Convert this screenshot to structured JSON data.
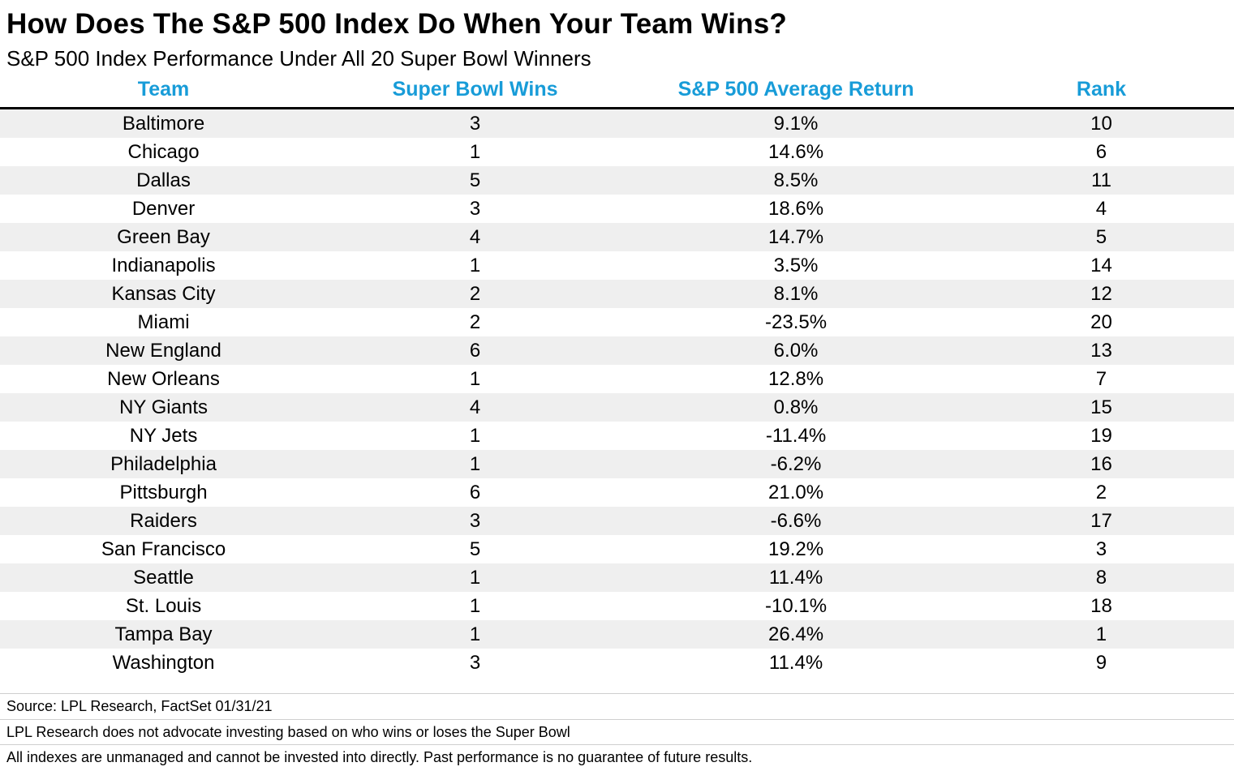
{
  "header": {
    "title": "How Does The S&P 500 Index Do When Your Team Wins?",
    "subtitle": "S&P 500 Index Performance Under All 20 Super Bowl Winners"
  },
  "colors": {
    "accent_header": "#189CD8",
    "row_stripe": "#EFEFEF",
    "header_divider": "#000000"
  },
  "chart_data": {
    "type": "table",
    "title": "How Does The S&P 500 Index Do When Your Team Wins?",
    "subtitle": "S&P 500 Index Performance Under All 20 Super Bowl Winners",
    "columns": [
      "Team",
      "Super Bowl Wins",
      "S&P 500 Average Return",
      "Rank"
    ],
    "rows": [
      {
        "team": "Baltimore",
        "wins": "3",
        "return": "9.1%",
        "rank": "10"
      },
      {
        "team": "Chicago",
        "wins": "1",
        "return": "14.6%",
        "rank": "6"
      },
      {
        "team": "Dallas",
        "wins": "5",
        "return": "8.5%",
        "rank": "11"
      },
      {
        "team": "Denver",
        "wins": "3",
        "return": "18.6%",
        "rank": "4"
      },
      {
        "team": "Green Bay",
        "wins": "4",
        "return": "14.7%",
        "rank": "5"
      },
      {
        "team": "Indianapolis",
        "wins": "1",
        "return": "3.5%",
        "rank": "14"
      },
      {
        "team": "Kansas City",
        "wins": "2",
        "return": "8.1%",
        "rank": "12"
      },
      {
        "team": "Miami",
        "wins": "2",
        "return": "-23.5%",
        "rank": "20"
      },
      {
        "team": "New England",
        "wins": "6",
        "return": "6.0%",
        "rank": "13"
      },
      {
        "team": "New Orleans",
        "wins": "1",
        "return": "12.8%",
        "rank": "7"
      },
      {
        "team": "NY Giants",
        "wins": "4",
        "return": "0.8%",
        "rank": "15"
      },
      {
        "team": "NY Jets",
        "wins": "1",
        "return": "-11.4%",
        "rank": "19"
      },
      {
        "team": "Philadelphia",
        "wins": "1",
        "return": "-6.2%",
        "rank": "16"
      },
      {
        "team": "Pittsburgh",
        "wins": "6",
        "return": "21.0%",
        "rank": "2"
      },
      {
        "team": "Raiders",
        "wins": "3",
        "return": "-6.6%",
        "rank": "17"
      },
      {
        "team": "San Francisco",
        "wins": "5",
        "return": "19.2%",
        "rank": "3"
      },
      {
        "team": "Seattle",
        "wins": "1",
        "return": "11.4%",
        "rank": "8"
      },
      {
        "team": "St. Louis",
        "wins": "1",
        "return": "-10.1%",
        "rank": "18"
      },
      {
        "team": "Tampa Bay",
        "wins": "1",
        "return": "26.4%",
        "rank": "1"
      },
      {
        "team": "Washington",
        "wins": "3",
        "return": "11.4%",
        "rank": "9"
      }
    ]
  },
  "footer": {
    "lines": [
      "Source: LPL Research, FactSet 01/31/21",
      "LPL Research does not advocate investing based on who wins or loses the Super Bowl",
      "All indexes are unmanaged and cannot be invested into directly. Past performance is no guarantee of future results."
    ]
  }
}
